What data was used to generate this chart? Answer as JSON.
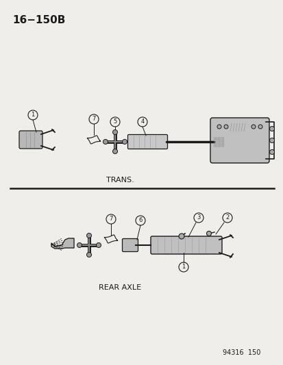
{
  "title": "16−150B",
  "section1_label": "TRANS.",
  "section2_label": "REAR AXLE",
  "footer": "94316  150",
  "bg_color": "#f0eeea",
  "line_color": "#1a1a1a",
  "fig_width": 4.14,
  "fig_height": 5.33,
  "dpi": 100
}
